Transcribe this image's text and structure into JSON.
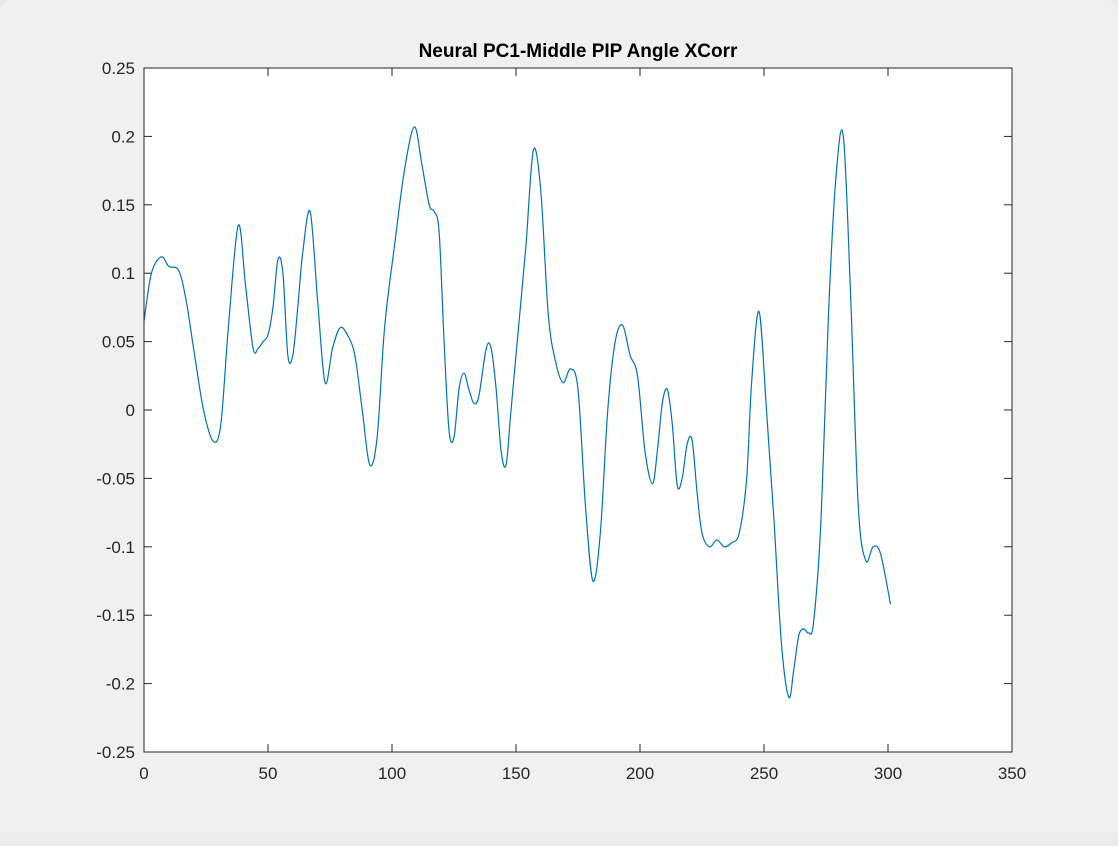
{
  "window": {
    "background": "#f0f0f0"
  },
  "chart_data": {
    "type": "line",
    "title": "Neural PC1-Middle PIP Angle XCorr",
    "xlabel": "",
    "ylabel": "",
    "xlim": [
      0,
      350
    ],
    "ylim": [
      -0.25,
      0.25
    ],
    "x_ticks": [
      0,
      50,
      100,
      150,
      200,
      250,
      300,
      350
    ],
    "y_ticks": [
      -0.25,
      -0.2,
      -0.15,
      -0.1,
      -0.05,
      0,
      0.05,
      0.1,
      0.15,
      0.2,
      0.25
    ],
    "x_tick_labels": [
      "0",
      "50",
      "100",
      "150",
      "200",
      "250",
      "300",
      "350"
    ],
    "y_tick_labels": [
      "-0.25",
      "-0.2",
      "-0.15",
      "-0.1",
      "-0.05",
      "0",
      "0.05",
      "0.1",
      "0.15",
      "0.2",
      "0.25"
    ],
    "grid": false,
    "line_color": "#0072BD",
    "series": [
      {
        "x": [
          0,
          3,
          7,
          10,
          14,
          17,
          20,
          24,
          28,
          31,
          34,
          38,
          41,
          44,
          46,
          48,
          50,
          52,
          54,
          56,
          58,
          60,
          62,
          64,
          67,
          70,
          73,
          76,
          79,
          82,
          85,
          88,
          91,
          94,
          97,
          101,
          105,
          109,
          112,
          115,
          117,
          119,
          121,
          123,
          125,
          127,
          129,
          131,
          133,
          135,
          138,
          140,
          142,
          144,
          146,
          148,
          151,
          154,
          157,
          160,
          163,
          166,
          169,
          172,
          175,
          178,
          181,
          184,
          187,
          190,
          193,
          196,
          199,
          202,
          205,
          207,
          209,
          211,
          213,
          215,
          217,
          219,
          221,
          223,
          225,
          228,
          231,
          234,
          237,
          240,
          243,
          245,
          248,
          251,
          254,
          257,
          260,
          262,
          264,
          266,
          268,
          270,
          273,
          276,
          279,
          282,
          285,
          288,
          291,
          294,
          297,
          301
        ],
        "y": [
          0.065,
          0.1,
          0.112,
          0.105,
          0.102,
          0.08,
          0.045,
          0.0,
          -0.023,
          -0.01,
          0.06,
          0.135,
          0.09,
          0.045,
          0.045,
          0.05,
          0.055,
          0.075,
          0.11,
          0.1,
          0.04,
          0.04,
          0.075,
          0.115,
          0.145,
          0.08,
          0.02,
          0.045,
          0.06,
          0.055,
          0.04,
          0.0,
          -0.04,
          -0.02,
          0.06,
          0.12,
          0.175,
          0.207,
          0.18,
          0.15,
          0.145,
          0.13,
          0.05,
          -0.015,
          -0.02,
          0.015,
          0.027,
          0.015,
          0.005,
          0.01,
          0.045,
          0.045,
          0.015,
          -0.03,
          -0.04,
          0.0,
          0.06,
          0.12,
          0.19,
          0.16,
          0.07,
          0.035,
          0.02,
          0.03,
          0.015,
          -0.07,
          -0.125,
          -0.09,
          0.0,
          0.05,
          0.062,
          0.04,
          0.025,
          -0.03,
          -0.054,
          -0.03,
          0.005,
          0.015,
          -0.01,
          -0.055,
          -0.05,
          -0.025,
          -0.022,
          -0.06,
          -0.09,
          -0.1,
          -0.095,
          -0.1,
          -0.097,
          -0.09,
          -0.05,
          0.02,
          0.072,
          0.0,
          -0.08,
          -0.17,
          -0.21,
          -0.19,
          -0.165,
          -0.16,
          -0.163,
          -0.155,
          -0.08,
          0.07,
          0.17,
          0.2,
          0.08,
          -0.07,
          -0.11,
          -0.1,
          -0.105,
          -0.142
        ]
      }
    ]
  }
}
